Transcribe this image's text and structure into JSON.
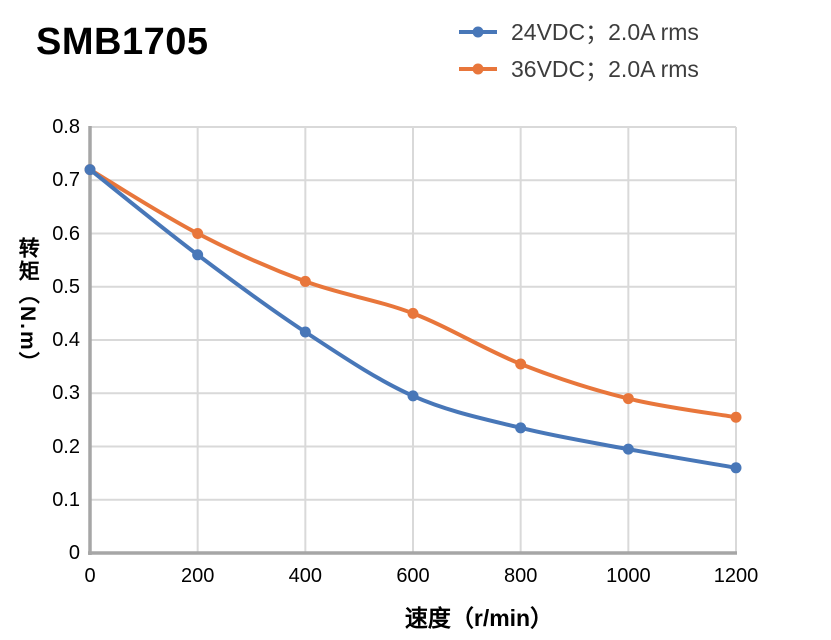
{
  "title": "SMB1705",
  "legend": {
    "position": "top-right",
    "items": [
      {
        "label": "24VDC；2.0A rms"
      },
      {
        "label": "36VDC；2.0A rms"
      }
    ]
  },
  "chart_data": {
    "type": "line",
    "smooth": true,
    "grid": true,
    "x": [
      0,
      200,
      400,
      600,
      800,
      1000,
      1200
    ],
    "series": [
      {
        "name": "24VDC；2.0A rms",
        "color": "#4877B8",
        "marker": "circle",
        "values": [
          0.72,
          0.56,
          0.415,
          0.295,
          0.235,
          0.195,
          0.16
        ]
      },
      {
        "name": "36VDC；2.0A rms",
        "color": "#E8763B",
        "marker": "circle",
        "values": [
          0.72,
          0.6,
          0.51,
          0.45,
          0.355,
          0.29,
          0.255
        ]
      }
    ],
    "xlabel": "速度（r/min）",
    "ylabel": "转矩（N.m）",
    "xlim": [
      0,
      1200
    ],
    "ylim": [
      0,
      0.8
    ],
    "xticks": {
      "values": [
        0,
        200,
        400,
        600,
        800,
        1000,
        1200
      ],
      "labels": [
        "0",
        "200",
        "400",
        "600",
        "800",
        "1000",
        "1200"
      ]
    },
    "yticks": {
      "values": [
        0,
        0.1,
        0.2,
        0.3,
        0.4,
        0.5,
        0.6,
        0.7,
        0.8
      ],
      "labels": [
        "0",
        "0.1",
        "0.2",
        "0.3",
        "0.4",
        "0.5",
        "0.6",
        "0.7",
        "0.8"
      ]
    },
    "colors": {
      "grid": "#D9D9D9",
      "axis": "#A6A6A6",
      "tick_text": "#000000"
    }
  }
}
